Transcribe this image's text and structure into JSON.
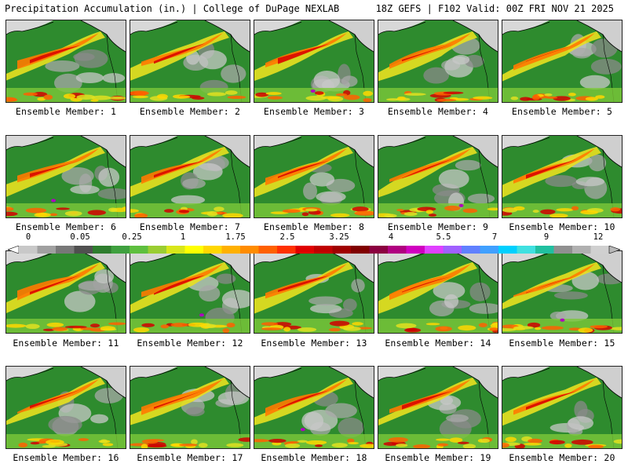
{
  "header": {
    "title": "Precipitation Accumulation (in.) | College of DuPage NEXLAB",
    "run_info": "18Z GEFS | F102 Valid: 00Z FRI NOV 21 2025"
  },
  "member_label_prefix": "Ensemble Member: ",
  "members": [
    1,
    2,
    3,
    4,
    5,
    6,
    7,
    8,
    9,
    10,
    11,
    12,
    13,
    14,
    15,
    16,
    17,
    18,
    19,
    20
  ],
  "colorbar": {
    "tick_labels": [
      "0",
      "0.05",
      "0.25",
      "1",
      "1.75",
      "2.5",
      "3.25",
      "4",
      "5.5",
      "7",
      "9",
      "12"
    ],
    "colors": [
      "#c8c8c8",
      "#a0a0a0",
      "#787878",
      "#505050",
      "#2e7d2e",
      "#3fa03f",
      "#5ebf3f",
      "#9acd32",
      "#d8e61a",
      "#ffff00",
      "#ffd700",
      "#ffb000",
      "#ff8c00",
      "#ff6000",
      "#ff3000",
      "#e00000",
      "#c00000",
      "#a00000",
      "#800000",
      "#8b0040",
      "#b00080",
      "#d000c0",
      "#e040ff",
      "#a060ff",
      "#6080ff",
      "#40a0ff",
      "#00d0ff",
      "#40e0e0",
      "#20c0a0",
      "#909090",
      "#b0b0b0",
      "#d0d0d0"
    ]
  }
}
